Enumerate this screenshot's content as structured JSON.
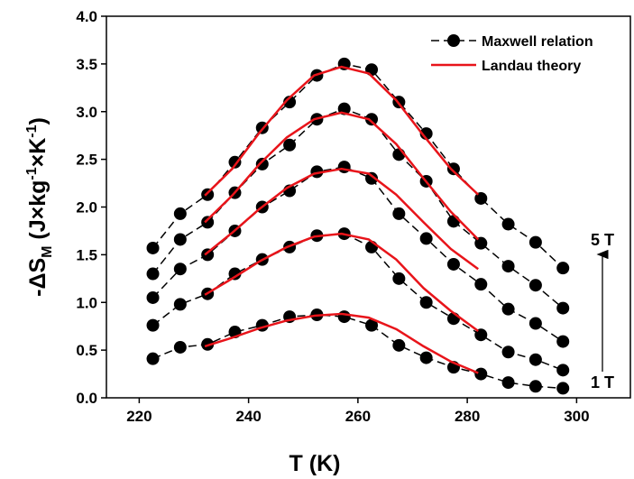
{
  "chart_data": {
    "type": "line",
    "xlabel": "T (K)",
    "ylabel_parts": [
      "-ΔS",
      "M",
      " (J×kg",
      "-1",
      "×K",
      "-1",
      ")"
    ],
    "xlim": [
      214,
      310
    ],
    "xticks": [
      220,
      240,
      260,
      280,
      300
    ],
    "ylim": [
      0,
      4
    ],
    "yticks": [
      {
        "value": 0,
        "label": "0.0"
      },
      {
        "value": 0.5,
        "label": "0.5"
      },
      {
        "value": 1,
        "label": "1.0"
      },
      {
        "value": 1.5,
        "label": "1.5"
      },
      {
        "value": 2,
        "label": "2.0"
      },
      {
        "value": 2.5,
        "label": "2.5"
      },
      {
        "value": 3,
        "label": "3.0"
      },
      {
        "value": 3.5,
        "label": "3.5"
      },
      {
        "value": 4,
        "label": "4.0"
      }
    ],
    "legend": "upper right",
    "series": [
      {
        "name": "Maxwell relation",
        "color": "#000000",
        "markers": true,
        "x": [
          222.5,
          227.5,
          232.5,
          237.5,
          242.5,
          247.5,
          252.5,
          257.5,
          262.5,
          267.5,
          272.5,
          277.5,
          282.5,
          287.5,
          292.5,
          297.5
        ],
        "curves": [
          [
            0.41,
            0.53,
            0.56,
            0.69,
            0.76,
            0.85,
            0.87,
            0.85,
            0.76,
            0.55,
            0.42,
            0.32,
            0.25,
            0.16,
            0.12,
            0.1
          ],
          [
            0.76,
            0.98,
            1.09,
            1.3,
            1.45,
            1.58,
            1.7,
            1.72,
            1.58,
            1.25,
            1.0,
            0.83,
            0.66,
            0.48,
            0.4,
            0.29
          ],
          [
            1.05,
            1.35,
            1.5,
            1.75,
            2.0,
            2.17,
            2.37,
            2.42,
            2.3,
            1.93,
            1.67,
            1.4,
            1.19,
            0.93,
            0.78,
            0.59
          ],
          [
            1.3,
            1.66,
            1.84,
            2.15,
            2.45,
            2.65,
            2.92,
            3.03,
            2.92,
            2.55,
            2.27,
            1.85,
            1.62,
            1.38,
            1.18,
            0.94
          ],
          [
            1.57,
            1.93,
            2.13,
            2.47,
            2.83,
            3.1,
            3.38,
            3.5,
            3.44,
            3.1,
            2.77,
            2.4,
            2.09,
            1.82,
            1.63,
            1.36
          ]
        ]
      },
      {
        "name": "Landau theory",
        "color": "#e8141a",
        "markers": false,
        "x": [
          232,
          237,
          242,
          247,
          252,
          257,
          262,
          267,
          272,
          277,
          282
        ],
        "curves": [
          [
            0.54,
            0.63,
            0.73,
            0.81,
            0.86,
            0.88,
            0.84,
            0.72,
            0.54,
            0.38,
            0.26
          ],
          [
            1.08,
            1.25,
            1.43,
            1.58,
            1.69,
            1.72,
            1.66,
            1.45,
            1.15,
            0.91,
            0.7
          ],
          [
            1.5,
            1.73,
            1.98,
            2.2,
            2.35,
            2.4,
            2.35,
            2.13,
            1.84,
            1.56,
            1.35
          ],
          [
            1.84,
            2.12,
            2.45,
            2.73,
            2.92,
            2.99,
            2.92,
            2.66,
            2.3,
            1.95,
            1.66
          ],
          [
            2.12,
            2.4,
            2.78,
            3.12,
            3.38,
            3.47,
            3.4,
            3.12,
            2.75,
            2.4,
            2.13
          ]
        ]
      }
    ],
    "annotations": [
      "5 T",
      "1 T"
    ]
  }
}
